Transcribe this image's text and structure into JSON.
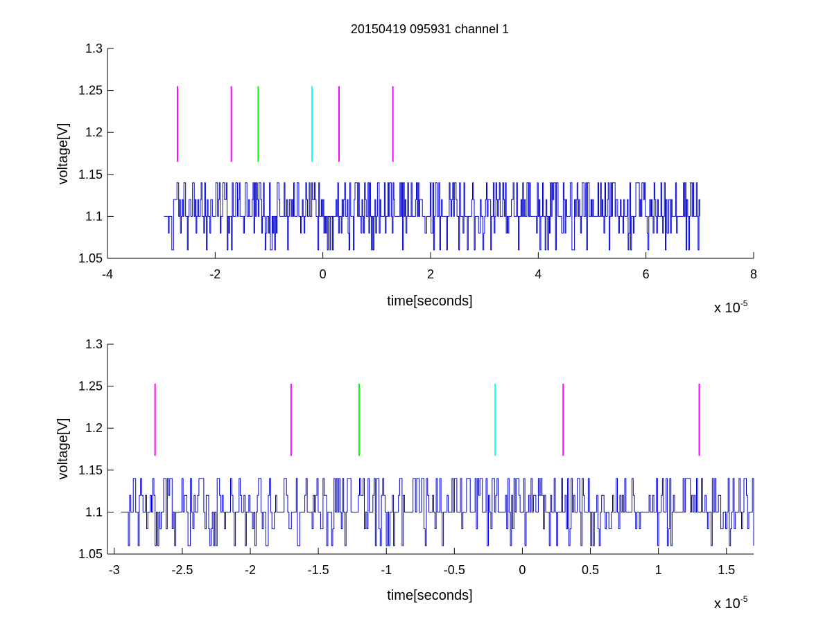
{
  "figure": {
    "title": "20150419 095931 channel 1"
  },
  "chart_data": [
    {
      "type": "line",
      "title": "20150419 095931 channel 1",
      "xlabel": "time[seconds]",
      "ylabel": "voltage[V]",
      "x_multiplier_label": "x 10",
      "x_multiplier_exponent": "-5",
      "xlim": [
        -4,
        8
      ],
      "ylim": [
        1.05,
        1.3
      ],
      "xticks": [
        "-4",
        "-2",
        "0",
        "2",
        "4",
        "6",
        "8"
      ],
      "yticks": [
        "1.05",
        "1.1",
        "1.15",
        "1.2",
        "1.25",
        "1.3"
      ],
      "grid": false,
      "series": [
        {
          "kind": "signal",
          "color": "#0000cc",
          "x_range": [
            -2.95,
            7.0
          ],
          "levels": [
            1.06,
            1.08,
            1.1,
            1.12,
            1.14
          ],
          "baseline": 1.1,
          "dense": true,
          "seed": 7
        }
      ],
      "markers": [
        {
          "x": -2.7,
          "color": "#ff00ff",
          "y0": 1.165,
          "y1": 1.255
        },
        {
          "x": -1.7,
          "color": "#ff00ff",
          "y0": 1.165,
          "y1": 1.255
        },
        {
          "x": -1.2,
          "color": "#00ff00",
          "y0": 1.165,
          "y1": 1.255
        },
        {
          "x": -0.2,
          "color": "#00ffff",
          "y0": 1.165,
          "y1": 1.255
        },
        {
          "x": 0.3,
          "color": "#ff00ff",
          "y0": 1.165,
          "y1": 1.255
        },
        {
          "x": 1.3,
          "color": "#ff00ff",
          "y0": 1.165,
          "y1": 1.255
        }
      ]
    },
    {
      "type": "line",
      "title": "",
      "xlabel": "time[seconds]",
      "ylabel": "voltage[V]",
      "x_multiplier_label": "x 10",
      "x_multiplier_exponent": "-5",
      "xlim": [
        -3.05,
        1.7
      ],
      "ylim": [
        1.05,
        1.3
      ],
      "xticks": [
        "-3",
        "-2.5",
        "-2",
        "-1.5",
        "-1",
        "-0.5",
        "0",
        "0.5",
        "1",
        "1.5"
      ],
      "yticks": [
        "1.05",
        "1.1",
        "1.15",
        "1.2",
        "1.25",
        "1.3"
      ],
      "grid": false,
      "series": [
        {
          "kind": "signal",
          "color": "#0000cc",
          "x_range": [
            -2.95,
            1.7
          ],
          "levels": [
            1.06,
            1.08,
            1.1,
            1.12,
            1.14
          ],
          "baseline": 1.1,
          "dense": false,
          "seed": 13
        }
      ],
      "markers": [
        {
          "x": -2.7,
          "color": "#ff00ff",
          "y0": 1.167,
          "y1": 1.253
        },
        {
          "x": -1.7,
          "color": "#ff00ff",
          "y0": 1.167,
          "y1": 1.253
        },
        {
          "x": -1.2,
          "color": "#00ff00",
          "y0": 1.167,
          "y1": 1.253
        },
        {
          "x": -0.2,
          "color": "#00ffff",
          "y0": 1.167,
          "y1": 1.253
        },
        {
          "x": 0.3,
          "color": "#ff00ff",
          "y0": 1.167,
          "y1": 1.253
        },
        {
          "x": 1.3,
          "color": "#ff00ff",
          "y0": 1.167,
          "y1": 1.253
        }
      ]
    }
  ]
}
